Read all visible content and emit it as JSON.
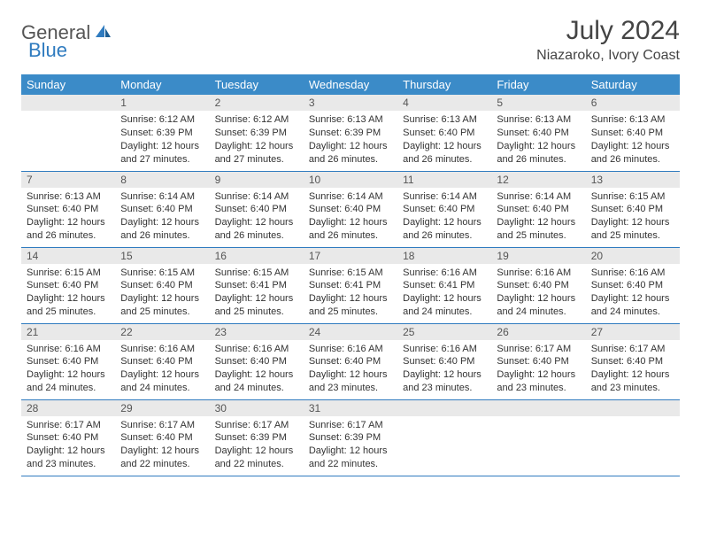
{
  "logo": {
    "text1": "General",
    "text2": "Blue"
  },
  "title": "July 2024",
  "location": "Niazaroko, Ivory Coast",
  "colors": {
    "header_bg": "#3b8bc8",
    "header_text": "#ffffff",
    "rule": "#2f7bbf",
    "daynum_bg": "#e9e9e9",
    "logo_blue": "#2f7bbf"
  },
  "day_headers": [
    "Sunday",
    "Monday",
    "Tuesday",
    "Wednesday",
    "Thursday",
    "Friday",
    "Saturday"
  ],
  "weeks": [
    [
      {
        "n": "",
        "lines": []
      },
      {
        "n": "1",
        "lines": [
          "Sunrise: 6:12 AM",
          "Sunset: 6:39 PM",
          "Daylight: 12 hours and 27 minutes."
        ]
      },
      {
        "n": "2",
        "lines": [
          "Sunrise: 6:12 AM",
          "Sunset: 6:39 PM",
          "Daylight: 12 hours and 27 minutes."
        ]
      },
      {
        "n": "3",
        "lines": [
          "Sunrise: 6:13 AM",
          "Sunset: 6:39 PM",
          "Daylight: 12 hours and 26 minutes."
        ]
      },
      {
        "n": "4",
        "lines": [
          "Sunrise: 6:13 AM",
          "Sunset: 6:40 PM",
          "Daylight: 12 hours and 26 minutes."
        ]
      },
      {
        "n": "5",
        "lines": [
          "Sunrise: 6:13 AM",
          "Sunset: 6:40 PM",
          "Daylight: 12 hours and 26 minutes."
        ]
      },
      {
        "n": "6",
        "lines": [
          "Sunrise: 6:13 AM",
          "Sunset: 6:40 PM",
          "Daylight: 12 hours and 26 minutes."
        ]
      }
    ],
    [
      {
        "n": "7",
        "lines": [
          "Sunrise: 6:13 AM",
          "Sunset: 6:40 PM",
          "Daylight: 12 hours and 26 minutes."
        ]
      },
      {
        "n": "8",
        "lines": [
          "Sunrise: 6:14 AM",
          "Sunset: 6:40 PM",
          "Daylight: 12 hours and 26 minutes."
        ]
      },
      {
        "n": "9",
        "lines": [
          "Sunrise: 6:14 AM",
          "Sunset: 6:40 PM",
          "Daylight: 12 hours and 26 minutes."
        ]
      },
      {
        "n": "10",
        "lines": [
          "Sunrise: 6:14 AM",
          "Sunset: 6:40 PM",
          "Daylight: 12 hours and 26 minutes."
        ]
      },
      {
        "n": "11",
        "lines": [
          "Sunrise: 6:14 AM",
          "Sunset: 6:40 PM",
          "Daylight: 12 hours and 26 minutes."
        ]
      },
      {
        "n": "12",
        "lines": [
          "Sunrise: 6:14 AM",
          "Sunset: 6:40 PM",
          "Daylight: 12 hours and 25 minutes."
        ]
      },
      {
        "n": "13",
        "lines": [
          "Sunrise: 6:15 AM",
          "Sunset: 6:40 PM",
          "Daylight: 12 hours and 25 minutes."
        ]
      }
    ],
    [
      {
        "n": "14",
        "lines": [
          "Sunrise: 6:15 AM",
          "Sunset: 6:40 PM",
          "Daylight: 12 hours and 25 minutes."
        ]
      },
      {
        "n": "15",
        "lines": [
          "Sunrise: 6:15 AM",
          "Sunset: 6:40 PM",
          "Daylight: 12 hours and 25 minutes."
        ]
      },
      {
        "n": "16",
        "lines": [
          "Sunrise: 6:15 AM",
          "Sunset: 6:41 PM",
          "Daylight: 12 hours and 25 minutes."
        ]
      },
      {
        "n": "17",
        "lines": [
          "Sunrise: 6:15 AM",
          "Sunset: 6:41 PM",
          "Daylight: 12 hours and 25 minutes."
        ]
      },
      {
        "n": "18",
        "lines": [
          "Sunrise: 6:16 AM",
          "Sunset: 6:41 PM",
          "Daylight: 12 hours and 24 minutes."
        ]
      },
      {
        "n": "19",
        "lines": [
          "Sunrise: 6:16 AM",
          "Sunset: 6:40 PM",
          "Daylight: 12 hours and 24 minutes."
        ]
      },
      {
        "n": "20",
        "lines": [
          "Sunrise: 6:16 AM",
          "Sunset: 6:40 PM",
          "Daylight: 12 hours and 24 minutes."
        ]
      }
    ],
    [
      {
        "n": "21",
        "lines": [
          "Sunrise: 6:16 AM",
          "Sunset: 6:40 PM",
          "Daylight: 12 hours and 24 minutes."
        ]
      },
      {
        "n": "22",
        "lines": [
          "Sunrise: 6:16 AM",
          "Sunset: 6:40 PM",
          "Daylight: 12 hours and 24 minutes."
        ]
      },
      {
        "n": "23",
        "lines": [
          "Sunrise: 6:16 AM",
          "Sunset: 6:40 PM",
          "Daylight: 12 hours and 24 minutes."
        ]
      },
      {
        "n": "24",
        "lines": [
          "Sunrise: 6:16 AM",
          "Sunset: 6:40 PM",
          "Daylight: 12 hours and 23 minutes."
        ]
      },
      {
        "n": "25",
        "lines": [
          "Sunrise: 6:16 AM",
          "Sunset: 6:40 PM",
          "Daylight: 12 hours and 23 minutes."
        ]
      },
      {
        "n": "26",
        "lines": [
          "Sunrise: 6:17 AM",
          "Sunset: 6:40 PM",
          "Daylight: 12 hours and 23 minutes."
        ]
      },
      {
        "n": "27",
        "lines": [
          "Sunrise: 6:17 AM",
          "Sunset: 6:40 PM",
          "Daylight: 12 hours and 23 minutes."
        ]
      }
    ],
    [
      {
        "n": "28",
        "lines": [
          "Sunrise: 6:17 AM",
          "Sunset: 6:40 PM",
          "Daylight: 12 hours and 23 minutes."
        ]
      },
      {
        "n": "29",
        "lines": [
          "Sunrise: 6:17 AM",
          "Sunset: 6:40 PM",
          "Daylight: 12 hours and 22 minutes."
        ]
      },
      {
        "n": "30",
        "lines": [
          "Sunrise: 6:17 AM",
          "Sunset: 6:39 PM",
          "Daylight: 12 hours and 22 minutes."
        ]
      },
      {
        "n": "31",
        "lines": [
          "Sunrise: 6:17 AM",
          "Sunset: 6:39 PM",
          "Daylight: 12 hours and 22 minutes."
        ]
      },
      {
        "n": "",
        "lines": []
      },
      {
        "n": "",
        "lines": []
      },
      {
        "n": "",
        "lines": []
      }
    ]
  ]
}
